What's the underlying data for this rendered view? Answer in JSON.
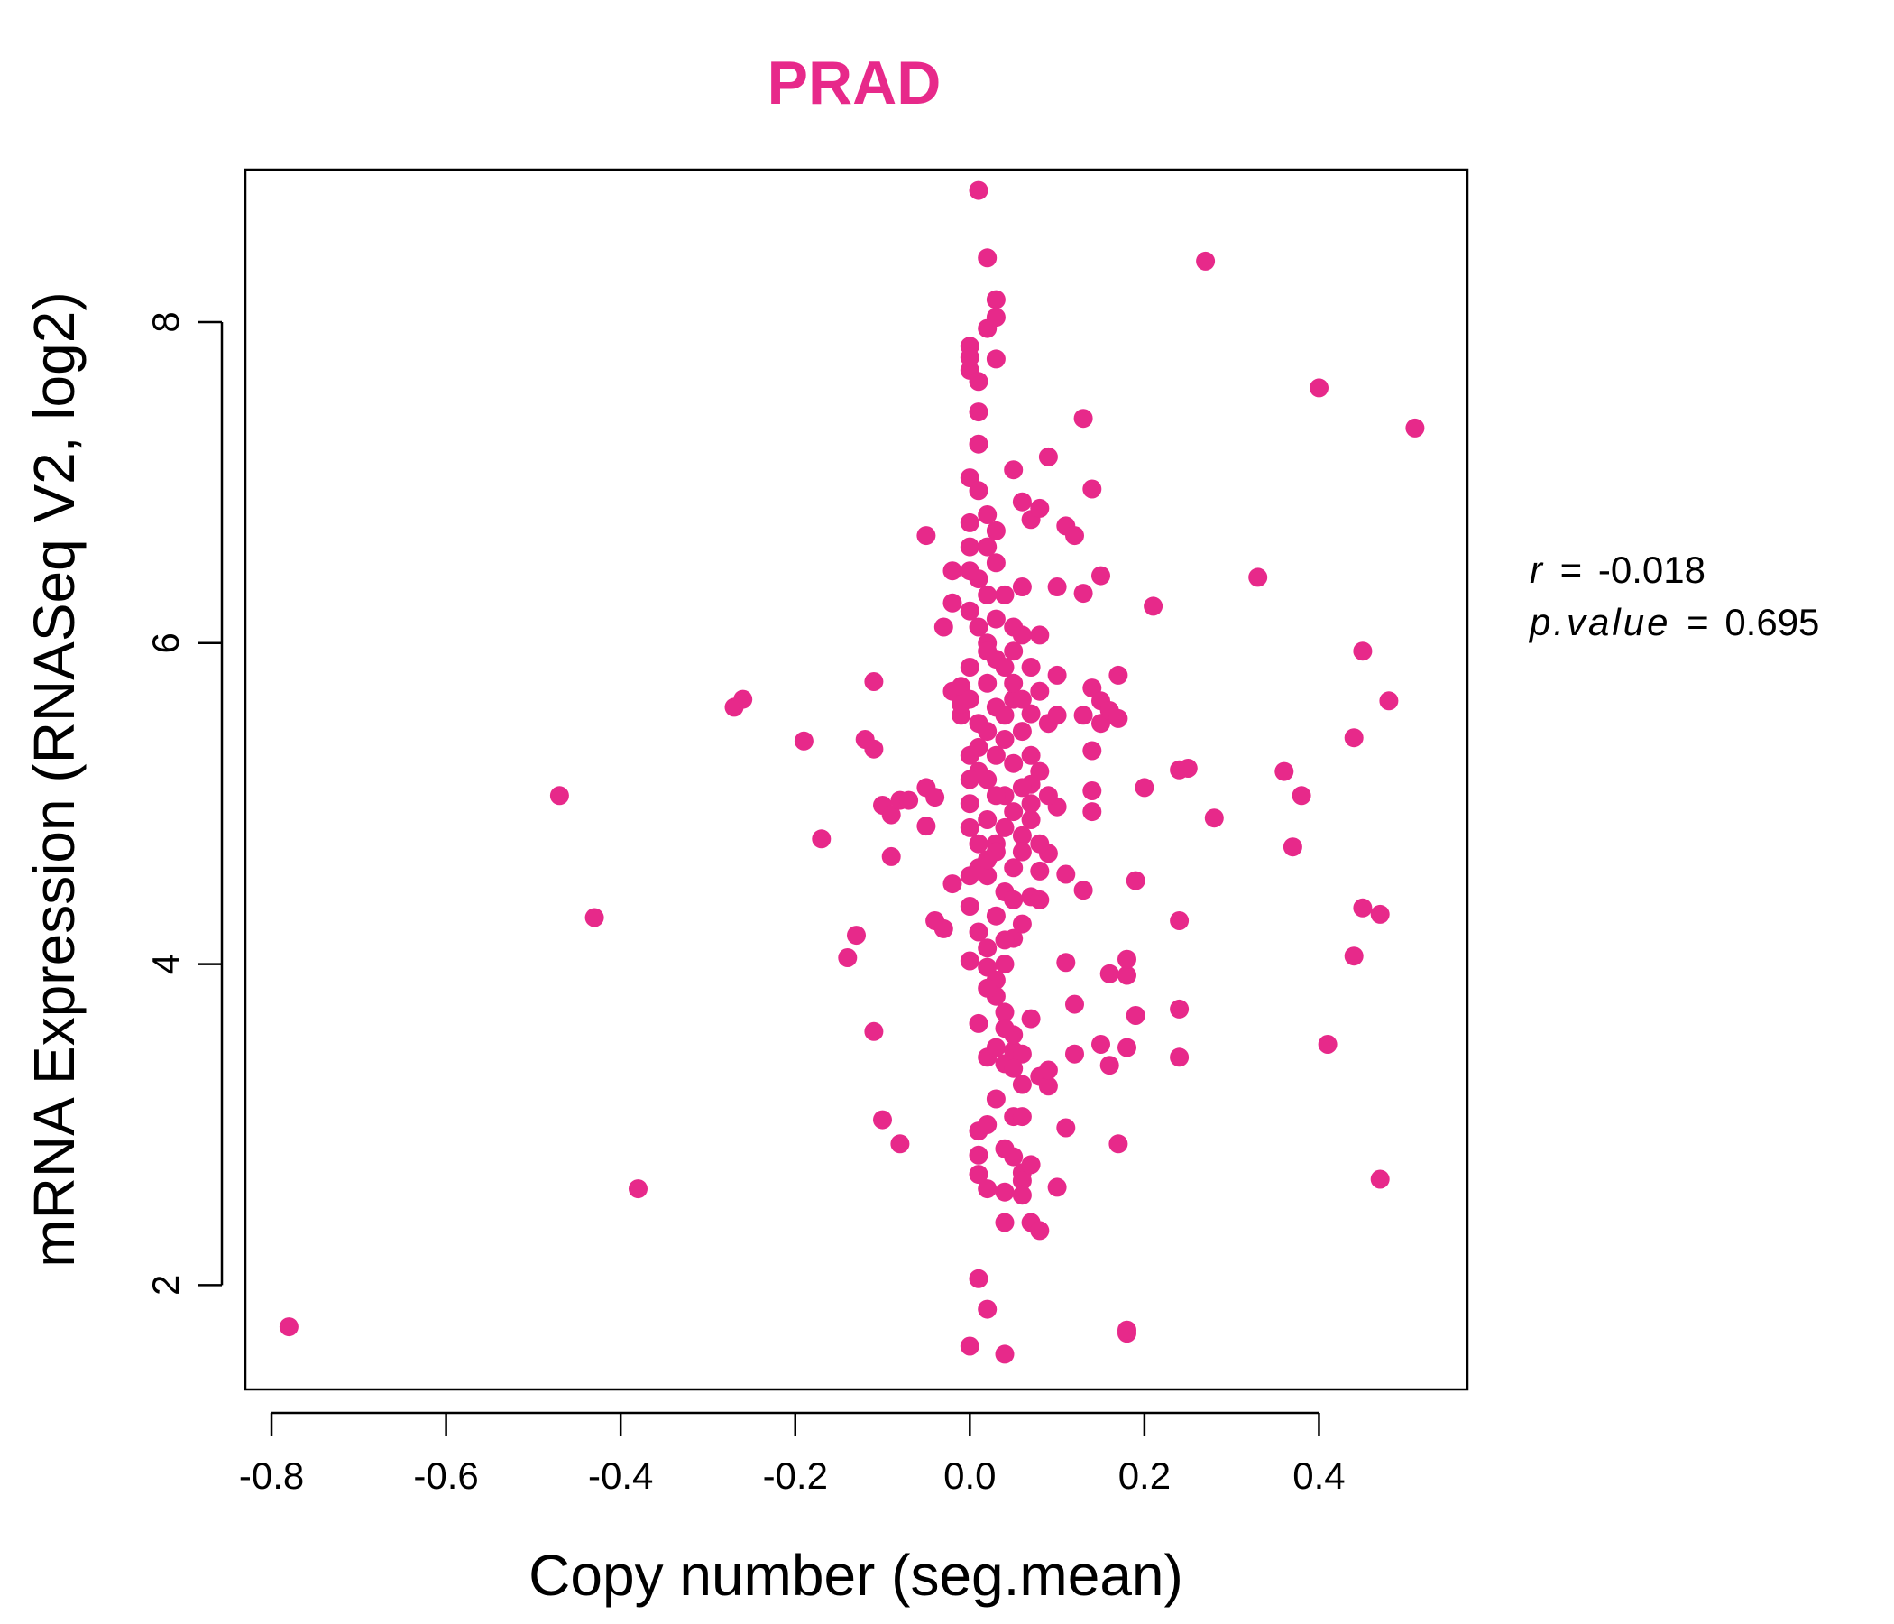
{
  "chart_data": {
    "type": "scatter",
    "title": "PRAD",
    "xlabel": "Copy number (seg.mean)",
    "ylabel": "mRNA Expression (RNASeq V2, log2)",
    "xlim": [
      -0.83,
      0.57
    ],
    "ylim": [
      1.35,
      8.95
    ],
    "x_ticks": [
      -0.8,
      -0.6,
      -0.4,
      -0.2,
      0.0,
      0.2,
      0.4
    ],
    "x_tick_labels": [
      "-0.8",
      "-0.6",
      "-0.4",
      "-0.2",
      "0.0",
      "0.2",
      "0.4"
    ],
    "y_ticks": [
      2,
      4,
      6,
      8
    ],
    "y_tick_labels": [
      "2",
      "4",
      "6",
      "8"
    ],
    "grid": false,
    "legend": "none",
    "stats": {
      "r_label": "r",
      "r_value": "-0.018",
      "p_label": "p.value",
      "p_value": "0.695"
    },
    "colors": {
      "points": "#E7298A",
      "title": "#E7298A",
      "axes": "#000000"
    },
    "points": [
      [
        -0.78,
        1.74
      ],
      [
        -0.47,
        5.05
      ],
      [
        -0.43,
        4.29
      ],
      [
        -0.38,
        2.6
      ],
      [
        -0.27,
        5.6
      ],
      [
        -0.26,
        5.65
      ],
      [
        -0.19,
        5.39
      ],
      [
        -0.17,
        4.78
      ],
      [
        -0.14,
        4.04
      ],
      [
        -0.13,
        4.18
      ],
      [
        -0.12,
        5.4
      ],
      [
        -0.11,
        5.34
      ],
      [
        -0.11,
        5.76
      ],
      [
        -0.11,
        3.58
      ],
      [
        -0.1,
        4.99
      ],
      [
        -0.1,
        3.03
      ],
      [
        -0.09,
        4.67
      ],
      [
        -0.09,
        4.93
      ],
      [
        -0.08,
        2.88
      ],
      [
        -0.08,
        5.02
      ],
      [
        -0.07,
        5.02
      ],
      [
        -0.05,
        6.67
      ],
      [
        -0.05,
        5.1
      ],
      [
        -0.05,
        4.86
      ],
      [
        -0.04,
        5.04
      ],
      [
        -0.04,
        4.27
      ],
      [
        -0.03,
        4.22
      ],
      [
        -0.03,
        6.1
      ],
      [
        -0.02,
        6.45
      ],
      [
        -0.02,
        6.25
      ],
      [
        -0.02,
        5.7
      ],
      [
        -0.02,
        4.5
      ],
      [
        -0.01,
        5.55
      ],
      [
        -0.01,
        5.73
      ],
      [
        -0.01,
        5.62
      ],
      [
        0.0,
        7.03
      ],
      [
        0.0,
        6.75
      ],
      [
        0.0,
        6.6
      ],
      [
        0.0,
        6.2
      ],
      [
        0.0,
        5.3
      ],
      [
        0.0,
        5.0
      ],
      [
        0.0,
        4.36
      ],
      [
        0.0,
        1.62
      ],
      [
        0.0,
        4.02
      ],
      [
        0.0,
        7.7
      ],
      [
        0.0,
        7.85
      ],
      [
        0.0,
        7.78
      ],
      [
        0.01,
        7.63
      ],
      [
        0.01,
        7.44
      ],
      [
        0.01,
        7.24
      ],
      [
        0.01,
        8.82
      ],
      [
        0.01,
        2.96
      ],
      [
        0.01,
        2.81
      ],
      [
        0.01,
        2.69
      ],
      [
        0.01,
        2.04
      ],
      [
        0.01,
        3.63
      ],
      [
        0.02,
        2.6
      ],
      [
        0.02,
        3.0
      ],
      [
        0.02,
        3.42
      ],
      [
        0.02,
        3.98
      ],
      [
        0.02,
        8.4
      ],
      [
        0.02,
        7.96
      ],
      [
        0.02,
        1.85
      ],
      [
        0.03,
        8.14
      ],
      [
        0.03,
        8.03
      ],
      [
        0.03,
        3.16
      ],
      [
        0.03,
        3.48
      ],
      [
        0.03,
        3.9
      ],
      [
        0.03,
        7.77
      ],
      [
        0.04,
        2.58
      ],
      [
        0.04,
        2.85
      ],
      [
        0.04,
        2.39
      ],
      [
        0.04,
        3.38
      ],
      [
        0.04,
        3.7
      ],
      [
        0.04,
        1.57
      ],
      [
        0.05,
        2.8
      ],
      [
        0.05,
        3.05
      ],
      [
        0.05,
        3.46
      ],
      [
        0.05,
        3.56
      ],
      [
        0.05,
        4.16
      ],
      [
        0.05,
        5.65
      ],
      [
        0.05,
        6.1
      ],
      [
        0.05,
        7.08
      ],
      [
        0.06,
        2.7
      ],
      [
        0.06,
        3.05
      ],
      [
        0.06,
        3.25
      ],
      [
        0.06,
        3.44
      ],
      [
        0.06,
        2.56
      ],
      [
        0.06,
        2.65
      ],
      [
        0.06,
        4.25
      ],
      [
        0.06,
        6.88
      ],
      [
        0.06,
        6.35
      ],
      [
        0.07,
        2.39
      ],
      [
        0.07,
        2.75
      ],
      [
        0.07,
        3.66
      ],
      [
        0.07,
        4.42
      ],
      [
        0.07,
        5.12
      ],
      [
        0.07,
        5.56
      ],
      [
        0.07,
        6.77
      ],
      [
        0.08,
        2.34
      ],
      [
        0.08,
        3.3
      ],
      [
        0.08,
        4.58
      ],
      [
        0.08,
        6.84
      ],
      [
        0.08,
        6.05
      ],
      [
        0.08,
        5.7
      ],
      [
        0.08,
        4.4
      ],
      [
        0.09,
        3.24
      ],
      [
        0.09,
        3.34
      ],
      [
        0.09,
        4.69
      ],
      [
        0.09,
        5.5
      ],
      [
        0.09,
        7.16
      ],
      [
        0.1,
        2.61
      ],
      [
        0.1,
        4.98
      ],
      [
        0.1,
        5.8
      ],
      [
        0.1,
        6.35
      ],
      [
        0.1,
        5.55
      ],
      [
        0.11,
        2.98
      ],
      [
        0.11,
        4.01
      ],
      [
        0.11,
        6.73
      ],
      [
        0.11,
        4.56
      ],
      [
        0.12,
        6.67
      ],
      [
        0.12,
        3.75
      ],
      [
        0.12,
        3.44
      ],
      [
        0.13,
        4.46
      ],
      [
        0.13,
        7.4
      ],
      [
        0.13,
        6.31
      ],
      [
        0.13,
        5.55
      ],
      [
        0.14,
        5.33
      ],
      [
        0.14,
        5.08
      ],
      [
        0.14,
        4.95
      ],
      [
        0.14,
        5.72
      ],
      [
        0.14,
        6.96
      ],
      [
        0.15,
        6.42
      ],
      [
        0.15,
        3.5
      ],
      [
        0.15,
        5.64
      ],
      [
        0.15,
        5.5
      ],
      [
        0.16,
        3.94
      ],
      [
        0.16,
        5.58
      ],
      [
        0.16,
        3.37
      ],
      [
        0.17,
        2.88
      ],
      [
        0.17,
        5.53
      ],
      [
        0.17,
        5.8
      ],
      [
        0.18,
        3.93
      ],
      [
        0.18,
        1.7
      ],
      [
        0.18,
        4.03
      ],
      [
        0.18,
        3.48
      ],
      [
        0.18,
        1.72
      ],
      [
        0.19,
        4.52
      ],
      [
        0.19,
        3.68
      ],
      [
        0.2,
        5.1
      ],
      [
        0.21,
        6.23
      ],
      [
        0.24,
        5.21
      ],
      [
        0.24,
        4.27
      ],
      [
        0.24,
        3.42
      ],
      [
        0.24,
        3.72
      ],
      [
        0.25,
        5.22
      ],
      [
        0.27,
        8.38
      ],
      [
        0.28,
        4.91
      ],
      [
        0.33,
        6.41
      ],
      [
        0.36,
        5.2
      ],
      [
        0.37,
        4.73
      ],
      [
        0.38,
        5.05
      ],
      [
        0.4,
        7.59
      ],
      [
        0.41,
        3.5
      ],
      [
        0.44,
        5.41
      ],
      [
        0.44,
        4.05
      ],
      [
        0.45,
        4.35
      ],
      [
        0.45,
        5.95
      ],
      [
        0.47,
        2.66
      ],
      [
        0.47,
        4.31
      ],
      [
        0.48,
        5.64
      ],
      [
        0.51,
        7.34
      ],
      [
        0.02,
        6.0
      ],
      [
        0.03,
        5.9
      ],
      [
        0.02,
        5.75
      ],
      [
        0.01,
        5.5
      ],
      [
        0.03,
        5.3
      ],
      [
        0.02,
        5.15
      ],
      [
        0.04,
        5.05
      ],
      [
        0.02,
        4.9
      ],
      [
        0.03,
        4.75
      ],
      [
        0.01,
        4.6
      ],
      [
        0.04,
        4.45
      ],
      [
        0.02,
        5.45
      ],
      [
        0.03,
        5.6
      ],
      [
        0.01,
        5.2
      ],
      [
        0.04,
        4.85
      ],
      [
        0.03,
        4.7
      ],
      [
        0.02,
        4.55
      ],
      [
        0.05,
        5.25
      ],
      [
        0.05,
        4.95
      ],
      [
        0.04,
        5.4
      ],
      [
        0.06,
        5.1
      ],
      [
        0.06,
        4.8
      ],
      [
        0.05,
        4.6
      ],
      [
        0.03,
        6.5
      ],
      [
        0.02,
        6.6
      ],
      [
        0.04,
        6.3
      ],
      [
        0.01,
        6.4
      ],
      [
        0.03,
        4.3
      ],
      [
        0.02,
        4.1
      ],
      [
        0.04,
        4.0
      ],
      [
        0.01,
        4.2
      ],
      [
        0.05,
        4.4
      ],
      [
        0.06,
        4.7
      ],
      [
        0.07,
        4.9
      ],
      [
        0.07,
        5.3
      ],
      [
        0.06,
        5.45
      ],
      [
        0.02,
        6.8
      ],
      [
        0.01,
        6.95
      ],
      [
        0.03,
        6.15
      ],
      [
        0.04,
        5.85
      ],
      [
        0.05,
        5.75
      ],
      [
        0.0,
        5.85
      ],
      [
        0.0,
        5.65
      ],
      [
        0.0,
        5.15
      ],
      [
        0.0,
        4.85
      ],
      [
        0.01,
        4.75
      ],
      [
        0.0,
        4.55
      ],
      [
        0.03,
        3.8
      ],
      [
        0.04,
        3.6
      ],
      [
        0.02,
        3.85
      ],
      [
        0.05,
        3.35
      ],
      [
        0.08,
        5.2
      ],
      [
        0.09,
        5.05
      ],
      [
        0.07,
        5.0
      ],
      [
        0.08,
        4.75
      ],
      [
        0.02,
        6.3
      ],
      [
        0.01,
        6.1
      ],
      [
        0.0,
        6.45
      ],
      [
        0.03,
        6.7
      ],
      [
        0.02,
        5.95
      ],
      [
        0.04,
        5.55
      ],
      [
        0.01,
        5.35
      ],
      [
        0.03,
        5.05
      ],
      [
        0.02,
        4.65
      ],
      [
        0.04,
        4.15
      ],
      [
        0.05,
        5.95
      ],
      [
        0.06,
        5.65
      ],
      [
        0.06,
        6.05
      ],
      [
        0.07,
        5.85
      ]
    ]
  }
}
